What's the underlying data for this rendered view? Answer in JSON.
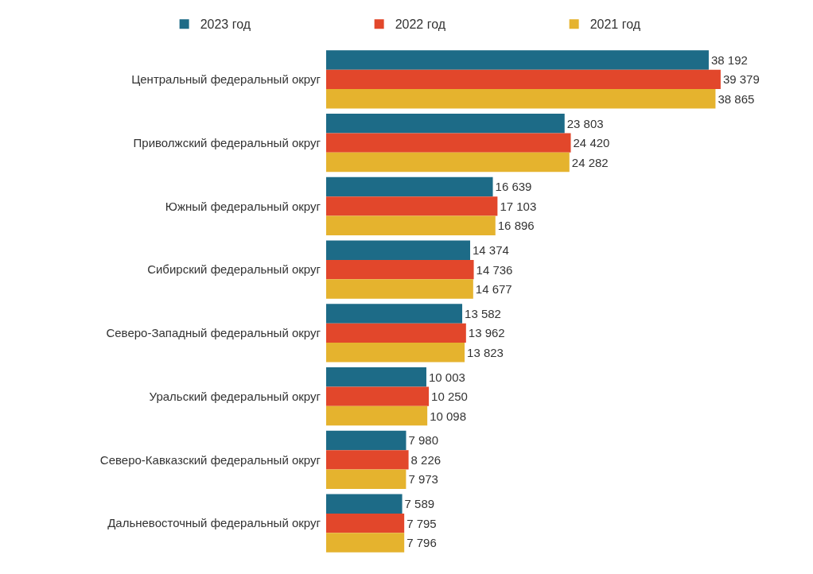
{
  "chart_data": {
    "type": "bar",
    "orientation": "horizontal",
    "legend": "top left",
    "categories": [
      "Центральный федеральный округ",
      "Приволжский федеральный округ",
      "Южный федеральный округ",
      "Сибирский федеральный округ",
      "Северо-Западный федеральный округ",
      "Уральский федеральный округ",
      "Северо-Кавказский федеральный округ",
      "Дальневосточный федеральный округ"
    ],
    "series": [
      {
        "name": "2023 год",
        "color": "#1d6b87",
        "values": [
          38192,
          23803,
          16639,
          14374,
          13582,
          10003,
          7980,
          7589
        ],
        "value_labels": [
          "38 192",
          "23 803",
          "16 639",
          "14 374",
          "13 582",
          "10 003",
          "7 980",
          "7 589"
        ]
      },
      {
        "name": "2022 год",
        "color": "#e2472b",
        "values": [
          39379,
          24420,
          17103,
          14736,
          13962,
          10250,
          8226,
          7795
        ],
        "value_labels": [
          "39 379",
          "24 420",
          "17 103",
          "14 736",
          "13 962",
          "10 250",
          "8 226",
          "7 795"
        ]
      },
      {
        "name": "2021 год",
        "color": "#e5b32e",
        "values": [
          38865,
          24282,
          16896,
          14677,
          13823,
          10098,
          7973,
          7796
        ],
        "value_labels": [
          "38 865",
          "24 282",
          "16 896",
          "14 677",
          "13 823",
          "10 098",
          "7 973",
          "7 796"
        ]
      }
    ]
  }
}
